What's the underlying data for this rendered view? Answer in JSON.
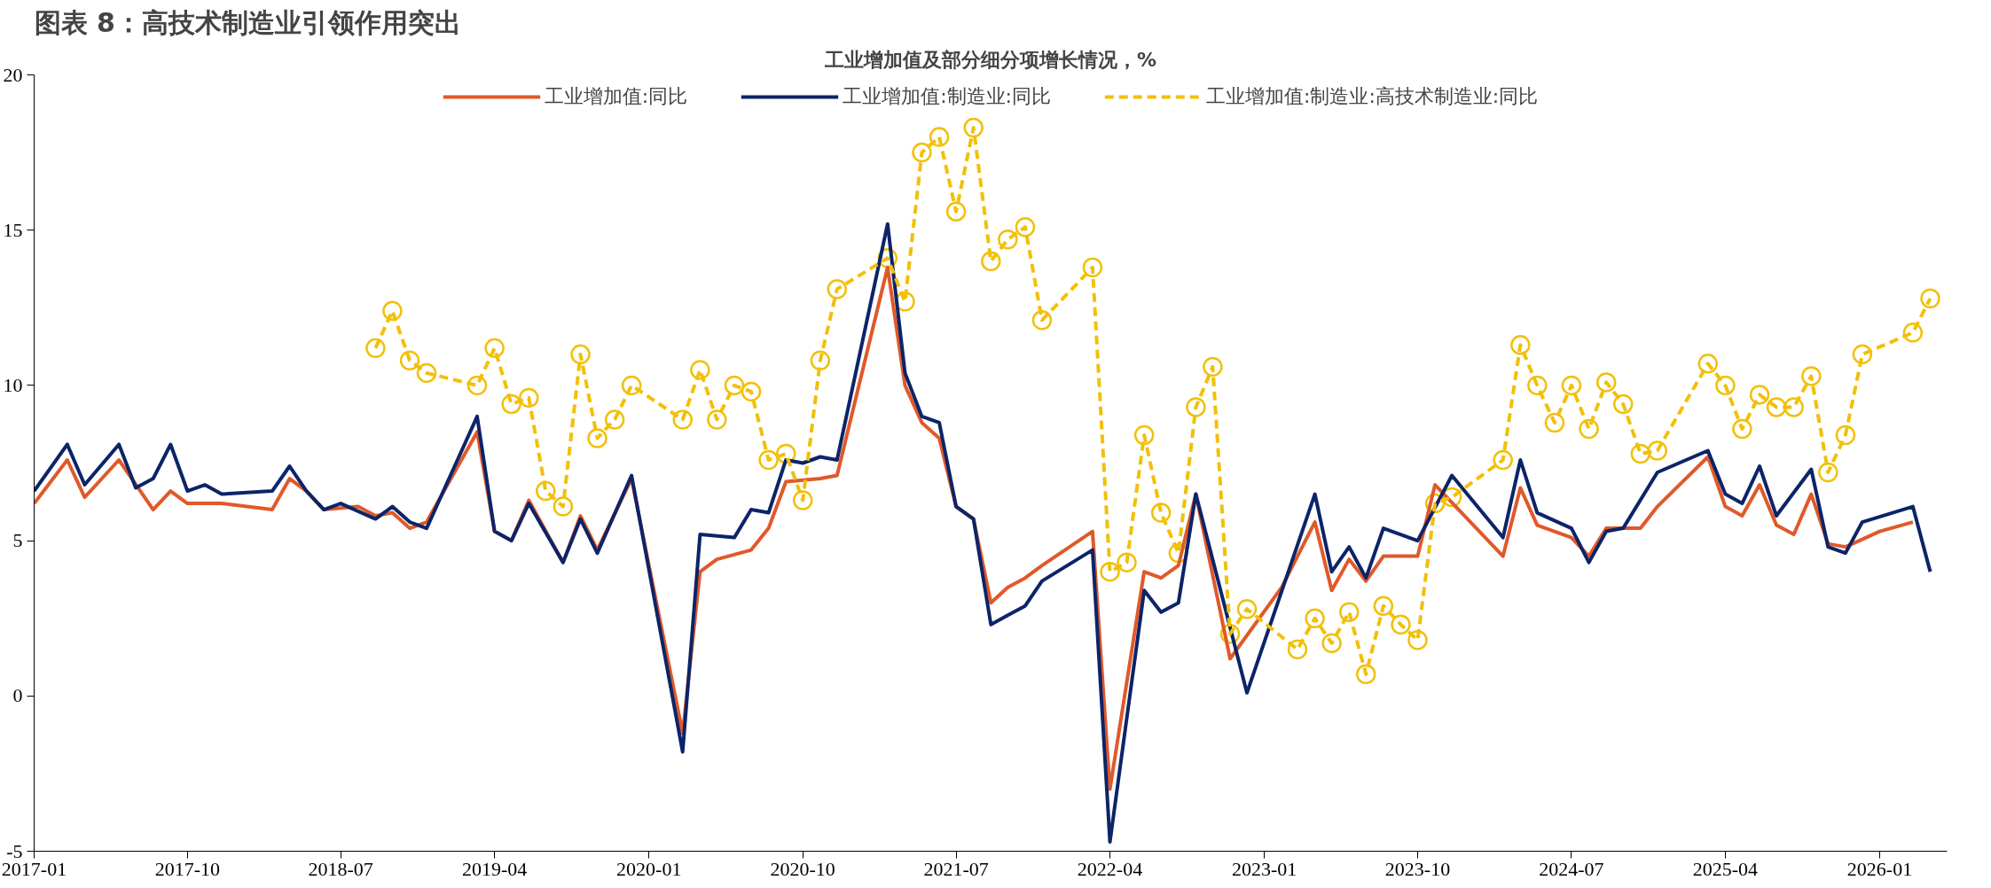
{
  "chart_data": {
    "type": "line",
    "title": "图表 8：高技术制造业引领作用突出",
    "subtitle": "工业增加值及部分细分项增长情况，%",
    "xlim": [
      "2017-01",
      "2026-05"
    ],
    "ylim": [
      -5,
      20
    ],
    "xticks": [
      "2017-01",
      "2017-10",
      "2018-07",
      "2019-04",
      "2020-01",
      "2020-10",
      "2021-07",
      "2022-04",
      "2023-01",
      "2023-10",
      "2024-07",
      "2025-04",
      "2026-01"
    ],
    "yticks": [
      -5,
      0,
      5,
      10,
      15,
      20
    ],
    "legend": "top",
    "series": [
      {
        "name": "工业增加值:同比",
        "color": "#e0592a",
        "line_style": "solid",
        "x": [
          "2017-01",
          "2017-03",
          "2017-04",
          "2017-06",
          "2017-08",
          "2017-09",
          "2017-10",
          "2017-12",
          "2018-03",
          "2018-04",
          "2018-05",
          "2018-06",
          "2018-08",
          "2018-09",
          "2018-10",
          "2018-11",
          "2018-12",
          "2019-03",
          "2019-04",
          "2019-05",
          "2019-06",
          "2019-08",
          "2019-09",
          "2019-10",
          "2019-12",
          "2020-03",
          "2020-04",
          "2020-05",
          "2020-07",
          "2020-08",
          "2020-09",
          "2020-11",
          "2020-12",
          "2021-03",
          "2021-04",
          "2021-05",
          "2021-06",
          "2021-07",
          "2021-08",
          "2021-09",
          "2021-10",
          "2021-11",
          "2021-12",
          "2022-03",
          "2022-04",
          "2022-06",
          "2022-07",
          "2022-08",
          "2022-09",
          "2022-11",
          "2023-02",
          "2023-04",
          "2023-05",
          "2023-06",
          "2023-07",
          "2023-08",
          "2023-10",
          "2023-11",
          "2024-03",
          "2024-04",
          "2024-05",
          "2024-07",
          "2024-08",
          "2024-09",
          "2024-11",
          "2024-12",
          "2025-03",
          "2025-04",
          "2025-05",
          "2025-06",
          "2025-07",
          "2025-08",
          "2025-09",
          "2025-10",
          "2025-11",
          "2026-01",
          "2026-03"
        ],
        "values": [
          6.2,
          7.6,
          6.4,
          7.6,
          6.0,
          6.6,
          6.2,
          6.2,
          6.0,
          7.0,
          6.6,
          6.0,
          6.1,
          5.8,
          5.9,
          5.4,
          5.6,
          8.5,
          5.3,
          5.0,
          6.3,
          4.3,
          5.8,
          4.7,
          7.0,
          -1.2,
          4.0,
          4.4,
          4.7,
          5.4,
          6.9,
          7.0,
          7.1,
          13.8,
          10.0,
          8.8,
          8.3,
          6.1,
          5.7,
          3.0,
          3.5,
          3.8,
          4.2,
          5.3,
          -3.0,
          4.0,
          3.8,
          4.2,
          6.5,
          1.2,
          3.5,
          5.6,
          3.4,
          4.4,
          3.7,
          4.5,
          4.5,
          6.8,
          4.5,
          6.7,
          5.5,
          5.1,
          4.5,
          5.4,
          5.4,
          6.1,
          7.7,
          6.1,
          5.8,
          6.8,
          5.5,
          5.2,
          6.5,
          4.9,
          4.8,
          5.3,
          5.6
        ]
      },
      {
        "name": "工业增加值:制造业:同比",
        "color": "#0c2468",
        "line_style": "solid",
        "x": [
          "2017-01",
          "2017-03",
          "2017-04",
          "2017-06",
          "2017-07",
          "2017-08",
          "2017-09",
          "2017-10",
          "2017-11",
          "2017-12",
          "2018-03",
          "2018-04",
          "2018-05",
          "2018-06",
          "2018-07",
          "2018-09",
          "2018-10",
          "2018-11",
          "2018-12",
          "2019-03",
          "2019-04",
          "2019-05",
          "2019-06",
          "2019-08",
          "2019-09",
          "2019-10",
          "2019-12",
          "2020-03",
          "2020-04",
          "2020-06",
          "2020-07",
          "2020-08",
          "2020-09",
          "2020-10",
          "2020-11",
          "2020-12",
          "2021-03",
          "2021-04",
          "2021-05",
          "2021-06",
          "2021-07",
          "2021-08",
          "2021-09",
          "2021-10",
          "2021-11",
          "2021-12",
          "2022-03",
          "2022-04",
          "2022-06",
          "2022-07",
          "2022-08",
          "2022-09",
          "2022-12",
          "2023-04",
          "2023-05",
          "2023-06",
          "2023-07",
          "2023-08",
          "2023-10",
          "2023-12",
          "2024-03",
          "2024-04",
          "2024-05",
          "2024-07",
          "2024-08",
          "2024-09",
          "2024-10",
          "2024-12",
          "2025-03",
          "2025-04",
          "2025-05",
          "2025-06",
          "2025-07",
          "2025-09",
          "2025-10",
          "2025-11",
          "2025-12",
          "2026-03",
          "2026-04"
        ],
        "values": [
          6.6,
          8.1,
          6.8,
          8.1,
          6.7,
          7.0,
          8.1,
          6.6,
          6.8,
          6.5,
          6.6,
          7.4,
          6.6,
          6.0,
          6.2,
          5.7,
          6.1,
          5.6,
          5.4,
          9.0,
          5.3,
          5.0,
          6.2,
          4.3,
          5.7,
          4.6,
          7.1,
          -1.8,
          5.2,
          5.1,
          6.0,
          5.9,
          7.6,
          7.5,
          7.7,
          7.6,
          15.2,
          10.4,
          9.0,
          8.8,
          6.1,
          5.7,
          2.3,
          2.6,
          2.9,
          3.7,
          4.7,
          -4.7,
          3.4,
          2.7,
          3.0,
          6.5,
          0.1,
          6.5,
          4.0,
          4.8,
          3.8,
          5.4,
          5.0,
          7.1,
          5.1,
          7.6,
          5.9,
          5.4,
          4.3,
          5.3,
          5.4,
          7.2,
          7.9,
          6.5,
          6.2,
          7.4,
          5.8,
          7.3,
          4.8,
          4.6,
          5.6,
          6.1,
          4.0
        ]
      },
      {
        "name": "工业增加值:制造业:高技术制造业:同比",
        "color": "#f2c00a",
        "line_style": "dashed",
        "marker": "circle",
        "x": [
          "2018-09",
          "2018-10",
          "2018-11",
          "2018-12",
          "2019-03",
          "2019-04",
          "2019-05",
          "2019-06",
          "2019-07",
          "2019-08",
          "2019-09",
          "2019-10",
          "2019-11",
          "2019-12",
          "2020-03",
          "2020-04",
          "2020-05",
          "2020-06",
          "2020-07",
          "2020-08",
          "2020-09",
          "2020-10",
          "2020-11",
          "2020-12",
          "2021-03",
          "2021-04",
          "2021-05",
          "2021-06",
          "2021-07",
          "2021-08",
          "2021-09",
          "2021-10",
          "2021-11",
          "2021-12",
          "2022-03",
          "2022-04",
          "2022-05",
          "2022-06",
          "2022-07",
          "2022-08",
          "2022-09",
          "2022-10",
          "2022-11",
          "2022-12",
          "2023-03",
          "2023-04",
          "2023-05",
          "2023-06",
          "2023-07",
          "2023-08",
          "2023-09",
          "2023-10",
          "2023-11",
          "2023-12",
          "2024-03",
          "2024-04",
          "2024-05",
          "2024-06",
          "2024-07",
          "2024-08",
          "2024-09",
          "2024-10",
          "2024-11",
          "2024-12",
          "2025-03",
          "2025-04",
          "2025-05",
          "2025-06",
          "2025-07",
          "2025-08",
          "2025-09",
          "2025-10",
          "2025-11",
          "2025-12",
          "2026-03",
          "2026-04"
        ],
        "values": [
          11.2,
          12.4,
          10.8,
          10.4,
          10.0,
          11.2,
          9.4,
          9.6,
          6.6,
          6.1,
          11.0,
          8.3,
          8.9,
          10.0,
          8.9,
          10.5,
          8.9,
          10.0,
          9.8,
          7.6,
          7.8,
          6.3,
          10.8,
          13.1,
          14.1,
          12.7,
          17.5,
          18.0,
          15.6,
          18.3,
          14.0,
          14.7,
          15.1,
          12.1,
          13.8,
          4.0,
          4.3,
          8.4,
          5.9,
          4.6,
          9.3,
          10.6,
          2.0,
          2.8,
          1.5,
          2.5,
          1.7,
          2.7,
          0.7,
          2.9,
          2.3,
          1.8,
          6.2,
          6.4,
          7.6,
          11.3,
          10.0,
          8.8,
          10.0,
          8.6,
          10.1,
          9.4,
          7.8,
          7.9,
          10.7,
          10.0,
          8.6,
          9.7,
          9.3,
          9.3,
          10.3,
          7.2,
          8.4,
          11.0,
          11.7,
          12.8
        ]
      }
    ]
  }
}
